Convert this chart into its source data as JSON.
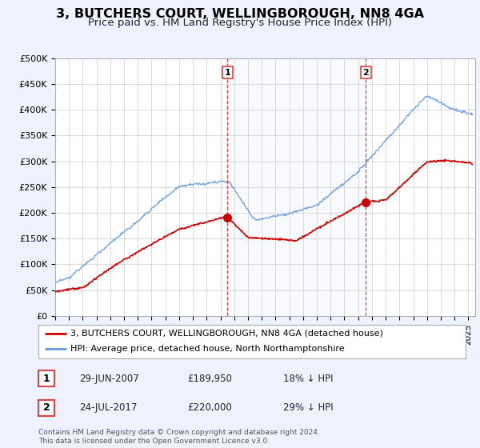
{
  "title": "3, BUTCHERS COURT, WELLINGBOROUGH, NN8 4GA",
  "subtitle": "Price paid vs. HM Land Registry's House Price Index (HPI)",
  "title_fontsize": 11.5,
  "subtitle_fontsize": 9.5,
  "ylabel_ticks": [
    "£0",
    "£50K",
    "£100K",
    "£150K",
    "£200K",
    "£250K",
    "£300K",
    "£350K",
    "£400K",
    "£450K",
    "£500K"
  ],
  "ytick_values": [
    0,
    50000,
    100000,
    150000,
    200000,
    250000,
    300000,
    350000,
    400000,
    450000,
    500000
  ],
  "ylim": [
    0,
    500000
  ],
  "xlim_start": 1995.0,
  "xlim_end": 2025.5,
  "background_color": "#eef2ff",
  "plot_bg_color": "#ffffff",
  "hpi_color": "#6699dd",
  "hpi_fill_color": "#dde8f8",
  "price_color": "#cc0000",
  "vline_color": "#dd4444",
  "marker1_x": 2007.5,
  "marker1_y": 189950,
  "marker2_x": 2017.56,
  "marker2_y": 220000,
  "legend_line1": "3, BUTCHERS COURT, WELLINGBOROUGH, NN8 4GA (detached house)",
  "legend_line2": "HPI: Average price, detached house, North Northamptonshire",
  "annotation1_num": "1",
  "annotation1_date": "29-JUN-2007",
  "annotation1_price": "£189,950",
  "annotation1_hpi": "18% ↓ HPI",
  "annotation2_num": "2",
  "annotation2_date": "24-JUL-2017",
  "annotation2_price": "£220,000",
  "annotation2_hpi": "29% ↓ HPI",
  "footer": "Contains HM Land Registry data © Crown copyright and database right 2024.\nThis data is licensed under the Open Government Licence v3.0."
}
